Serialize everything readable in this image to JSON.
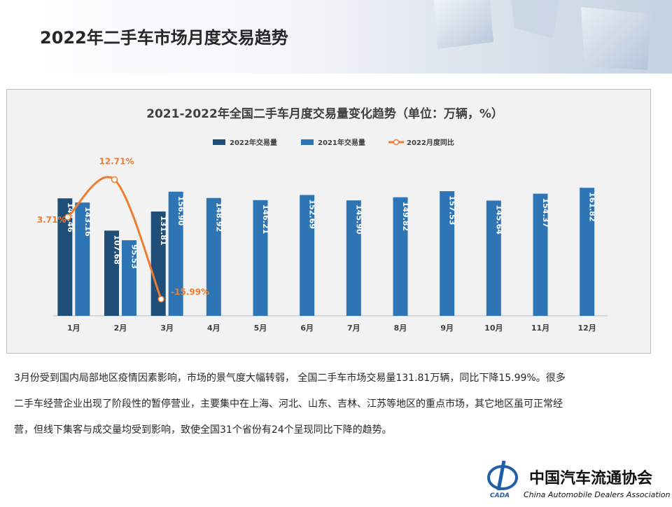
{
  "title": "2022年二手车市场月度交易趋势",
  "chart_data": {
    "type": "bar",
    "title": "2021-2022年全国二手车月度交易量变化趋势（单位：万辆，%）",
    "categories": [
      "1月",
      "2月",
      "3月",
      "4月",
      "5月",
      "6月",
      "7月",
      "8月",
      "9月",
      "10月",
      "11月",
      "12月"
    ],
    "series": [
      {
        "name": "2022年交易量",
        "color": "#1f4e79",
        "values": [
          148.46,
          107.68,
          131.81,
          null,
          null,
          null,
          null,
          null,
          null,
          null,
          null,
          null
        ],
        "value_labels": [
          "148.46",
          "107.68",
          "131.81",
          null,
          null,
          null,
          null,
          null,
          null,
          null,
          null,
          null
        ]
      },
      {
        "name": "2021年交易量",
        "color": "#2e75b6",
        "values": [
          143.16,
          95.53,
          156.9,
          148.92,
          146.21,
          152.69,
          145.9,
          149.82,
          157.53,
          145.64,
          154.37,
          161.82
        ],
        "value_labels": [
          "143.16",
          "95.53",
          "156.90",
          "148.92",
          "146.21",
          "152.69",
          "145.90",
          "149.82",
          "157.53",
          "145.64",
          "154.37",
          "161.82"
        ]
      },
      {
        "name": "2022月度同比",
        "type": "line",
        "axis": "y2",
        "color": "#ed7d31",
        "values": [
          3.71,
          12.71,
          -15.99,
          null,
          null,
          null,
          null,
          null,
          null,
          null,
          null,
          null
        ],
        "value_labels": [
          "3.71%",
          "12.71%",
          "-15.99%",
          null,
          null,
          null,
          null,
          null,
          null,
          null,
          null,
          null
        ]
      }
    ],
    "ylim": [
      0,
      200
    ],
    "y2lim": [
      -20,
      18
    ],
    "legend": "top"
  },
  "body": {
    "lines": [
      "3月份受到国内局部地区疫情因素影响，市场的景气度大幅转弱， 全国二手车市场交易量131.81万辆，同比下降15.99%。很多",
      "二手车经营企业出现了阶段性的暂停营业，主要集中在上海、河北、山东、吉林、江苏等地区的重点市场，其它地区虽可正常经",
      "营，但线下集客与成交量均受到影响，致使全国31个省份有24个呈现同比下降的趋势。"
    ]
  },
  "logo": {
    "abbr": "CADA",
    "name": "中国汽车流通协会",
    "english": "China Automobile Dealers Association"
  }
}
